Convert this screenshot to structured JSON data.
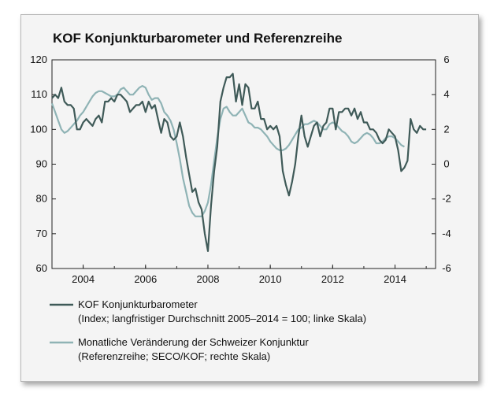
{
  "chart_data": {
    "type": "line",
    "title": "KOF Konjunkturbarometer und Referenzreihe",
    "x_ticks": [
      "2004",
      "2006",
      "2008",
      "2010",
      "2012",
      "2014"
    ],
    "xlim": [
      2003.5,
      2015.8
    ],
    "left_axis": {
      "ylim": [
        60,
        120
      ],
      "ticks": [
        "60",
        "70",
        "80",
        "90",
        "100",
        "110",
        "120"
      ]
    },
    "right_axis": {
      "ylim": [
        -6,
        6
      ],
      "ticks": [
        "-6",
        "-4",
        "-2",
        "0",
        "2",
        "4",
        "6"
      ]
    },
    "grid": false,
    "legend_position": "bottom",
    "series": [
      {
        "name": "KOF Konjunkturbarometer",
        "description": "(Index; langfristiger Durchschnitt 2005–2014 = 100; linke Skala)",
        "axis": "left",
        "color": "#3f5a58",
        "x": [
          2003.5,
          2003.6,
          2003.7,
          2003.8,
          2003.9,
          2004.0,
          2004.1,
          2004.2,
          2004.3,
          2004.4,
          2004.5,
          2004.6,
          2004.7,
          2004.8,
          2004.9,
          2005.0,
          2005.1,
          2005.2,
          2005.3,
          2005.4,
          2005.5,
          2005.6,
          2005.7,
          2005.8,
          2005.9,
          2006.0,
          2006.1,
          2006.2,
          2006.3,
          2006.4,
          2006.5,
          2006.6,
          2006.7,
          2006.8,
          2006.9,
          2007.0,
          2007.1,
          2007.2,
          2007.3,
          2007.4,
          2007.5,
          2007.6,
          2007.7,
          2007.8,
          2007.9,
          2008.0,
          2008.1,
          2008.2,
          2008.3,
          2008.4,
          2008.5,
          2008.6,
          2008.7,
          2008.8,
          2008.9,
          2009.0,
          2009.1,
          2009.2,
          2009.3,
          2009.4,
          2009.5,
          2009.6,
          2009.7,
          2009.8,
          2009.9,
          2010.0,
          2010.1,
          2010.2,
          2010.3,
          2010.4,
          2010.5,
          2010.6,
          2010.7,
          2010.8,
          2010.9,
          2011.0,
          2011.1,
          2011.2,
          2011.3,
          2011.4,
          2011.5,
          2011.6,
          2011.7,
          2011.8,
          2011.9,
          2012.0,
          2012.1,
          2012.2,
          2012.3,
          2012.4,
          2012.5,
          2012.6,
          2012.7,
          2012.8,
          2012.9,
          2013.0,
          2013.1,
          2013.2,
          2013.3,
          2013.4,
          2013.5,
          2013.6,
          2013.7,
          2013.8,
          2013.9,
          2014.0,
          2014.1,
          2014.2,
          2014.3,
          2014.4,
          2014.5,
          2014.6,
          2014.7,
          2014.8,
          2014.9,
          2015.0,
          2015.1,
          2015.2,
          2015.3,
          2015.4,
          2015.5
        ],
        "values": [
          109,
          110,
          109,
          112,
          108,
          107,
          107,
          106,
          100,
          100,
          102,
          103,
          102,
          101,
          103,
          104,
          102,
          108,
          108,
          109,
          108,
          110,
          110,
          109,
          108,
          105,
          106,
          107,
          107,
          108,
          105,
          108,
          106,
          107,
          103,
          99,
          103,
          102,
          98,
          97,
          98,
          102,
          98,
          92,
          87,
          82,
          83,
          79,
          77,
          70,
          65,
          78,
          88,
          95,
          108,
          112,
          115,
          115,
          116,
          108,
          113,
          107,
          113,
          112,
          106,
          106,
          108,
          103,
          103,
          100,
          101,
          100,
          101,
          98,
          88,
          84,
          81,
          85,
          90,
          98,
          104,
          98,
          95,
          98,
          101,
          102,
          98,
          101,
          102,
          106,
          106,
          100,
          105,
          105,
          106,
          106,
          104,
          106,
          103,
          105,
          102,
          102,
          100,
          100,
          99,
          97,
          96,
          97,
          100,
          99,
          98,
          94,
          88,
          89,
          91,
          103,
          100,
          99,
          101,
          100,
          100
        ]
      },
      {
        "name": "Monatliche Veränderung der Schweizer Konjunktur",
        "description": "(Referenzreihe; SECO/KOF; rechte Skala)",
        "axis": "right",
        "color": "#8fb3b5",
        "x": [
          2003.5,
          2003.6,
          2003.7,
          2003.8,
          2003.9,
          2004.0,
          2004.1,
          2004.2,
          2004.3,
          2004.4,
          2004.5,
          2004.6,
          2004.7,
          2004.8,
          2004.9,
          2005.0,
          2005.1,
          2005.2,
          2005.3,
          2005.4,
          2005.5,
          2005.6,
          2005.7,
          2005.8,
          2005.9,
          2006.0,
          2006.1,
          2006.2,
          2006.3,
          2006.4,
          2006.5,
          2006.6,
          2006.7,
          2006.8,
          2006.9,
          2007.0,
          2007.1,
          2007.2,
          2007.3,
          2007.4,
          2007.5,
          2007.6,
          2007.7,
          2007.8,
          2007.9,
          2008.0,
          2008.1,
          2008.2,
          2008.3,
          2008.4,
          2008.5,
          2008.6,
          2008.7,
          2008.8,
          2008.9,
          2009.0,
          2009.1,
          2009.2,
          2009.3,
          2009.4,
          2009.5,
          2009.6,
          2009.7,
          2009.8,
          2009.9,
          2010.0,
          2010.1,
          2010.2,
          2010.3,
          2010.4,
          2010.5,
          2010.6,
          2010.7,
          2010.8,
          2010.9,
          2011.0,
          2011.1,
          2011.2,
          2011.3,
          2011.4,
          2011.5,
          2011.6,
          2011.7,
          2011.8,
          2011.9,
          2012.0,
          2012.1,
          2012.2,
          2012.3,
          2012.4,
          2012.5,
          2012.6,
          2012.7,
          2012.8,
          2012.9,
          2013.0,
          2013.1,
          2013.2,
          2013.3,
          2013.4,
          2013.5,
          2013.6,
          2013.7,
          2013.8,
          2013.9,
          2014.0,
          2014.1,
          2014.2,
          2014.3,
          2014.4,
          2014.5,
          2014.6,
          2014.7,
          2014.8
        ],
        "values": [
          3.5,
          3.0,
          2.5,
          2.0,
          1.8,
          1.9,
          2.1,
          2.3,
          2.5,
          2.8,
          3.0,
          3.3,
          3.6,
          3.9,
          4.1,
          4.2,
          4.2,
          4.1,
          4.0,
          3.9,
          3.9,
          4.0,
          4.3,
          4.4,
          4.2,
          4.0,
          4.0,
          4.2,
          4.4,
          4.5,
          4.4,
          4.0,
          3.7,
          3.8,
          3.8,
          3.5,
          3.0,
          2.8,
          2.5,
          2.0,
          1.2,
          0.3,
          -0.8,
          -1.6,
          -2.4,
          -2.8,
          -3.0,
          -3.0,
          -3.0,
          -2.7,
          -2.2,
          -1.2,
          0.2,
          1.5,
          2.6,
          3.2,
          3.3,
          3.0,
          2.8,
          2.8,
          3.0,
          3.2,
          2.8,
          2.4,
          2.3,
          2.1,
          2.1,
          2.0,
          1.8,
          1.6,
          1.3,
          1.1,
          0.9,
          0.8,
          0.8,
          0.9,
          1.1,
          1.4,
          1.7,
          2.0,
          2.1,
          2.3,
          2.3,
          2.4,
          2.5,
          2.4,
          2.2,
          2.0,
          2.0,
          2.3,
          2.4,
          2.3,
          2.1,
          1.9,
          1.8,
          1.6,
          1.3,
          1.2,
          1.3,
          1.5,
          1.7,
          1.8,
          1.7,
          1.5,
          1.2,
          1.2,
          1.3,
          1.5,
          1.6,
          1.6,
          1.5,
          1.3,
          1.1,
          1.0
        ]
      }
    ]
  }
}
